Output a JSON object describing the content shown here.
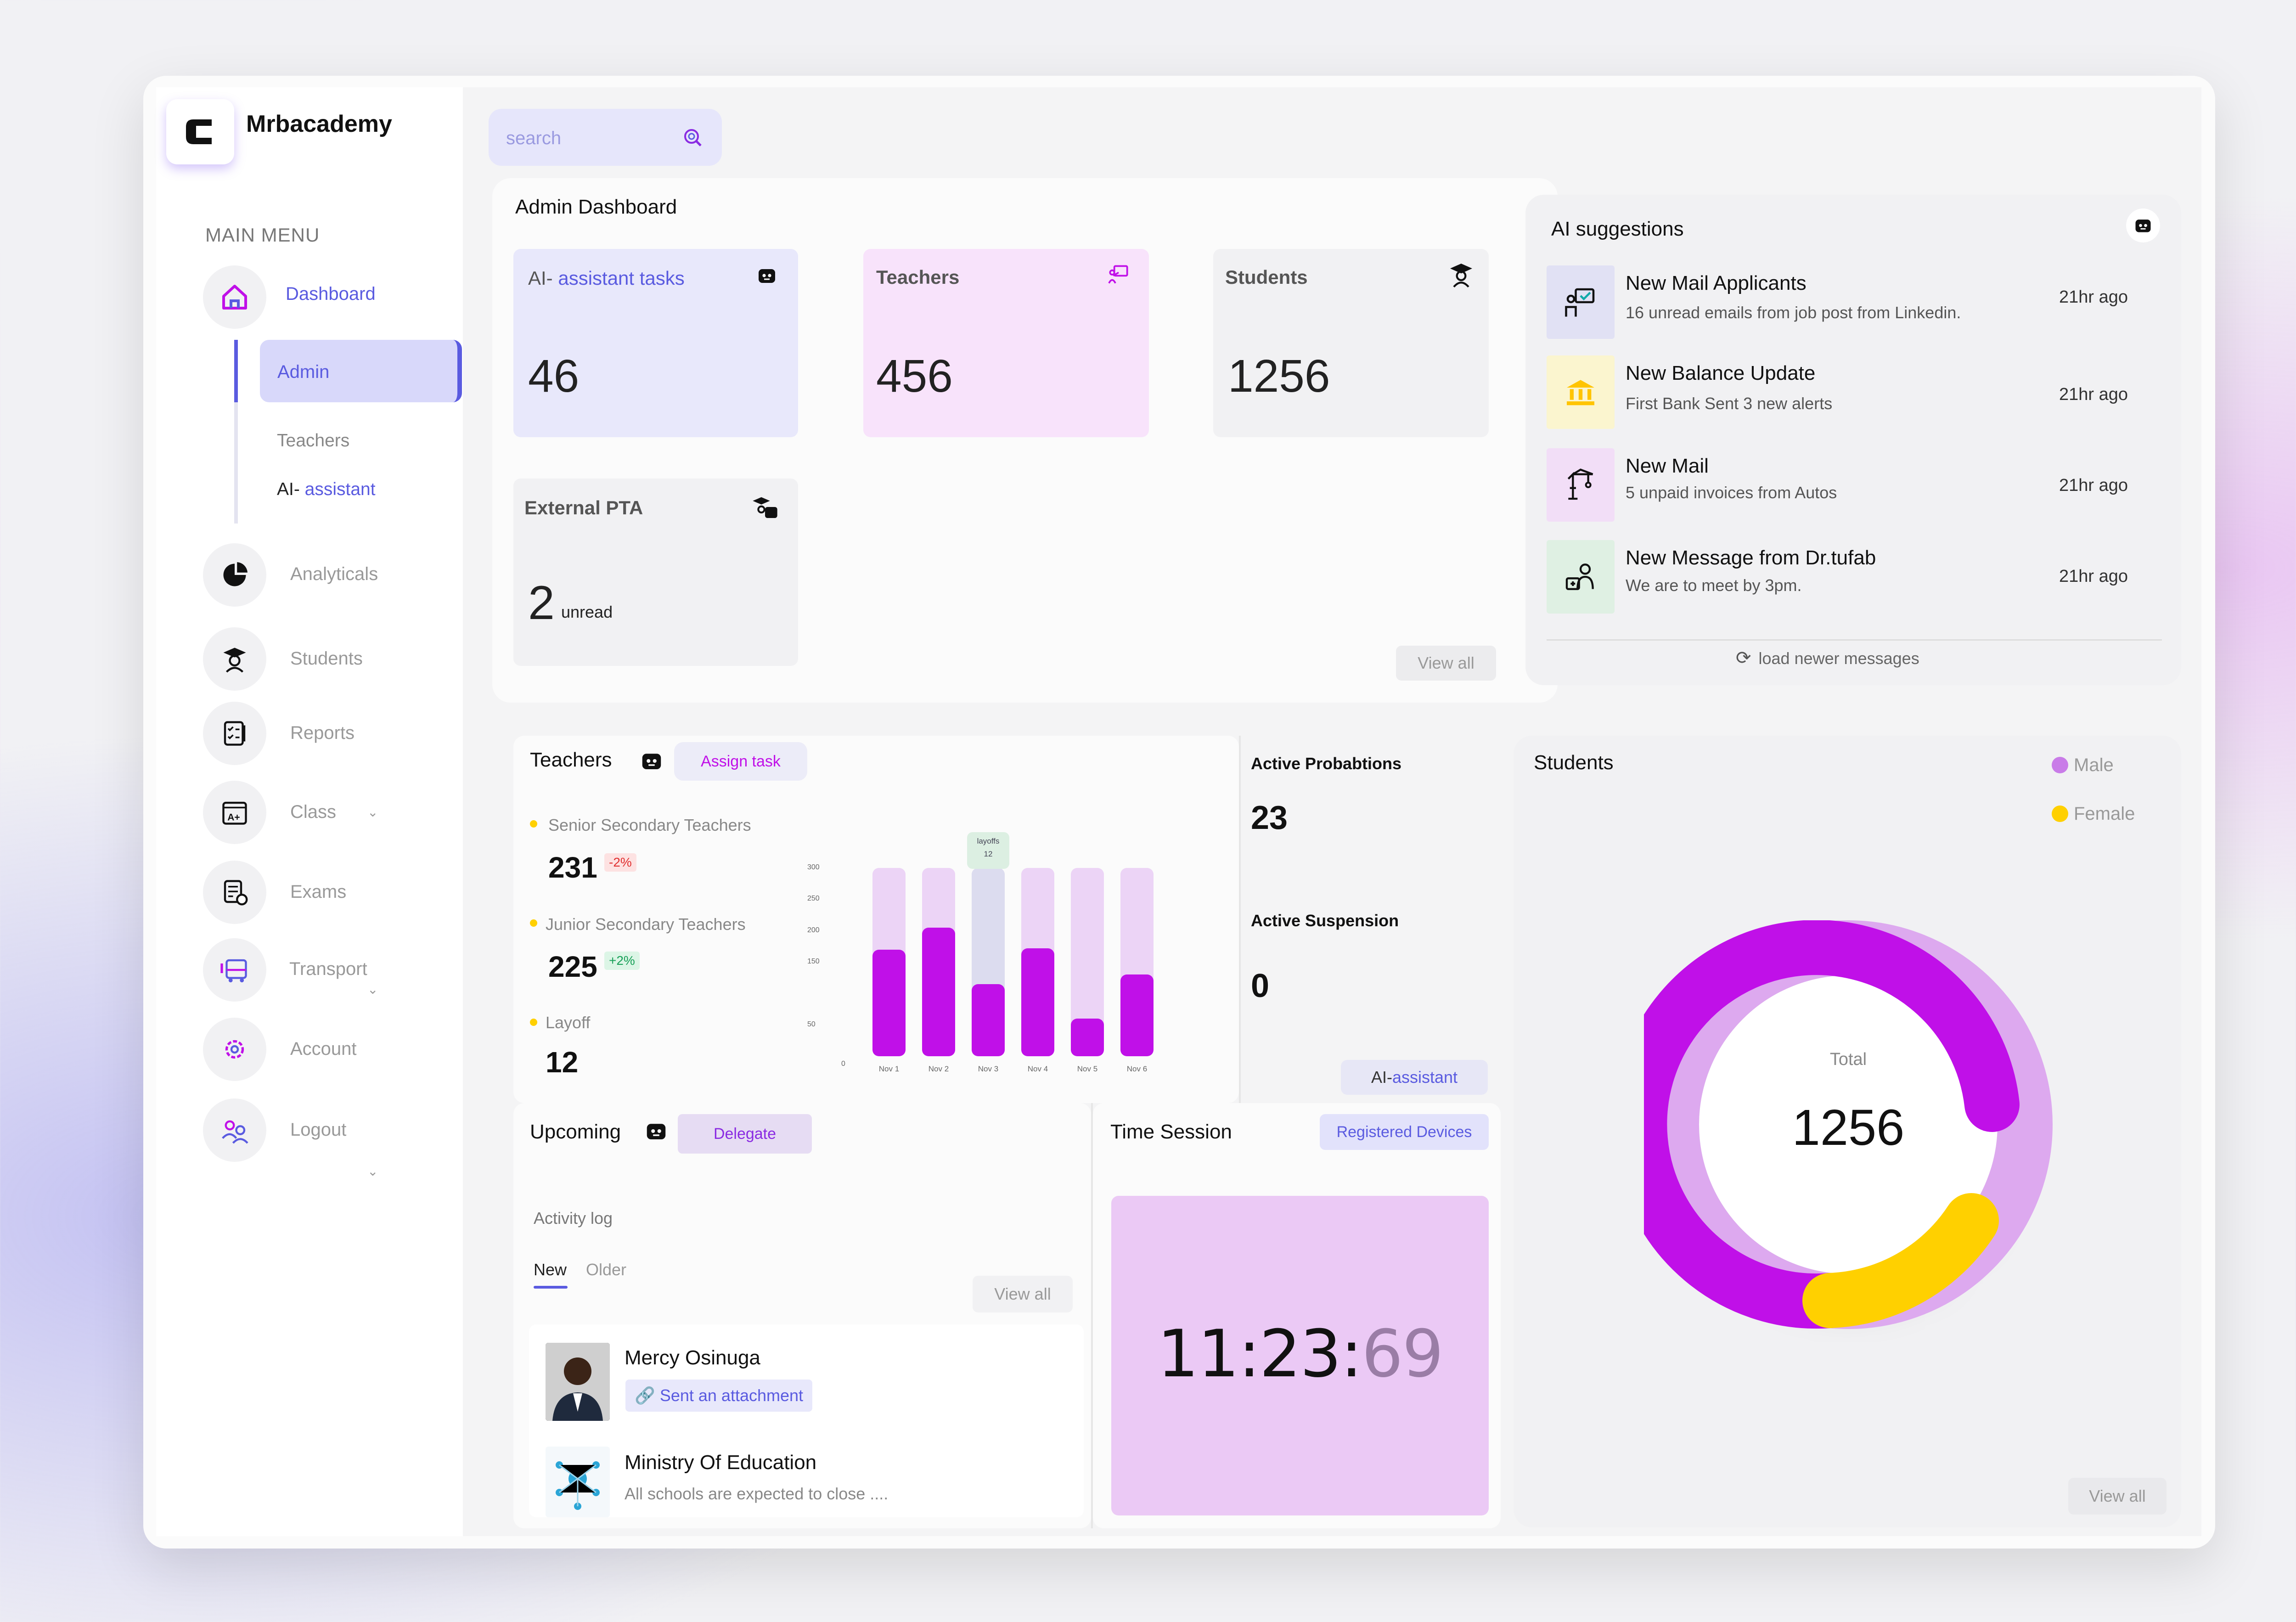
{
  "brand": {
    "name": "Mrbacademy"
  },
  "sidebar": {
    "menu_title": "MAIN MENU",
    "dashboard": "Dashboard",
    "sub": {
      "admin": "Admin",
      "teachers": "Teachers",
      "ai_prefix": "AI- ",
      "ai_suffix": "assistant"
    },
    "items": [
      {
        "label": "Analyticals"
      },
      {
        "label": "Students"
      },
      {
        "label": "Reports"
      },
      {
        "label": "Class"
      },
      {
        "label": "Exams"
      },
      {
        "label": "Transport"
      },
      {
        "label": "Account"
      },
      {
        "label": "Logout"
      }
    ]
  },
  "search": {
    "placeholder": "search"
  },
  "admin": {
    "title": "Admin Dashboard",
    "cards": {
      "ai": {
        "title_a": "AI- ",
        "title_b": "assistant tasks",
        "value": "46"
      },
      "teachers": {
        "title": "Teachers",
        "value": "456"
      },
      "students": {
        "title": "Students",
        "value": "1256"
      },
      "pta": {
        "title": "External PTA",
        "value": "2",
        "unit": "unread"
      }
    },
    "view_all": "View all"
  },
  "ai_suggestions": {
    "title": "AI suggestions",
    "items": [
      {
        "title": "New Mail Applicants",
        "sub": "16 unread emails from job post from Linkedin.",
        "time": "21hr ago"
      },
      {
        "title": "New Balance Update",
        "sub": "First Bank Sent 3 new alerts",
        "time": "21hr ago"
      },
      {
        "title": "New Mail",
        "sub": "5 unpaid invoices from Autos",
        "time": "21hr ago"
      },
      {
        "title": "New Message from Dr.tufab",
        "sub": "We are to meet by 3pm.",
        "time": "21hr ago"
      }
    ],
    "load_more": "load newer messages"
  },
  "teachers_panel": {
    "title": "Teachers",
    "assign_task": "Assign task",
    "stats": [
      {
        "label": "Senior Secondary Teachers",
        "value": "231",
        "delta": "-2%"
      },
      {
        "label": "Junior Secondary Teachers",
        "value": "225",
        "delta": "+2%"
      },
      {
        "label": "Layoff",
        "value": "12"
      }
    ]
  },
  "chart_data": {
    "type": "bar",
    "categories": [
      "Nov 1",
      "Nov 2",
      "Nov 3",
      "Nov 4",
      "Nov 5",
      "Nov 6"
    ],
    "values": [
      170,
      205,
      115,
      172,
      60,
      130
    ],
    "max_values": [
      300,
      300,
      300,
      300,
      300,
      300
    ],
    "y_ticks": [
      "0",
      "50",
      "150",
      "200",
      "250",
      "300"
    ],
    "ylim": [
      0,
      300
    ],
    "annotation": {
      "label": "layoffs",
      "value": "12",
      "category": "Nov 3"
    }
  },
  "probation": {
    "active_probation_label": "Active Probabtions",
    "active_probation_value": "23",
    "active_suspension_label": "Active Suspension",
    "active_suspension_value": "0",
    "ai_btn_a": "AI- ",
    "ai_btn_b": "assistant"
  },
  "students_panel": {
    "title": "Students",
    "legend": [
      {
        "label": "Male",
        "color": "#c97ce8"
      },
      {
        "label": "Female",
        "color": "#ffd000"
      }
    ],
    "total_label": "Total",
    "total": "1256",
    "view_all": "View all"
  },
  "upcoming": {
    "title": "Upcoming",
    "delegate": "Delegate",
    "activity_log": "Activity log",
    "tabs": [
      "New",
      "Older"
    ],
    "view_all": "View all",
    "items": [
      {
        "name": "Mercy Osinuga",
        "chip": "Sent an attachment"
      },
      {
        "name": "Ministry Of Education",
        "sub": "All schools are expected to close ...."
      }
    ]
  },
  "time_session": {
    "title": "Time Session",
    "devices_btn": "Registered Devices",
    "time_main": "11:23:",
    "time_sec": "69"
  },
  "colors": {
    "accent": "#c010e8",
    "purple": "#5a5be0",
    "yellow": "#ffd000"
  }
}
